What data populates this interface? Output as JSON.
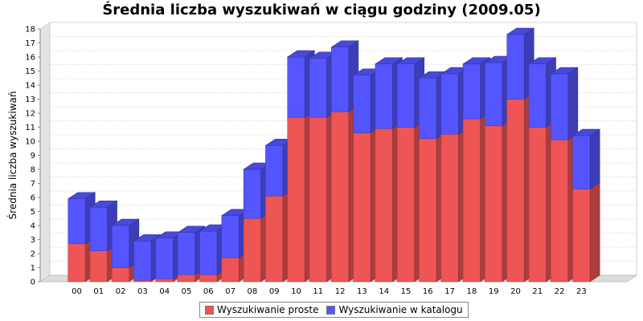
{
  "chart_data": {
    "type": "bar",
    "stacked": true,
    "title": "Średnia liczba wyszukiwań w ciągu godziny (2009.05)",
    "xlabel": "",
    "ylabel": "Średnia liczba wyszukiwań",
    "ylim": [
      0,
      18
    ],
    "yticks": [
      0,
      1,
      2,
      3,
      4,
      5,
      6,
      7,
      8,
      9,
      10,
      11,
      12,
      13,
      14,
      15,
      16,
      17,
      18
    ],
    "grid": true,
    "legend_position": "bottom",
    "categories": [
      "00",
      "01",
      "02",
      "03",
      "04",
      "05",
      "06",
      "07",
      "08",
      "09",
      "10",
      "11",
      "12",
      "13",
      "14",
      "15",
      "16",
      "17",
      "18",
      "19",
      "20",
      "21",
      "22",
      "23"
    ],
    "series": [
      {
        "name": "Wyszukiwanie proste",
        "color": "#ee5555",
        "values": [
          2.7,
          2.2,
          1.0,
          0.1,
          0.2,
          0.5,
          0.5,
          1.7,
          4.5,
          6.1,
          11.7,
          11.7,
          12.1,
          10.6,
          10.9,
          11.0,
          10.2,
          10.5,
          11.6,
          11.1,
          13.0,
          11.0,
          10.1,
          6.6
        ]
      },
      {
        "name": "Wyszukiwanie w katalogu",
        "color": "#5555ff",
        "values": [
          3.2,
          3.1,
          3.0,
          2.8,
          2.9,
          3.0,
          3.1,
          3.0,
          3.5,
          3.6,
          4.3,
          4.2,
          4.6,
          4.1,
          4.6,
          4.5,
          4.3,
          4.3,
          3.9,
          4.5,
          4.6,
          4.5,
          4.7,
          3.8
        ]
      }
    ]
  }
}
